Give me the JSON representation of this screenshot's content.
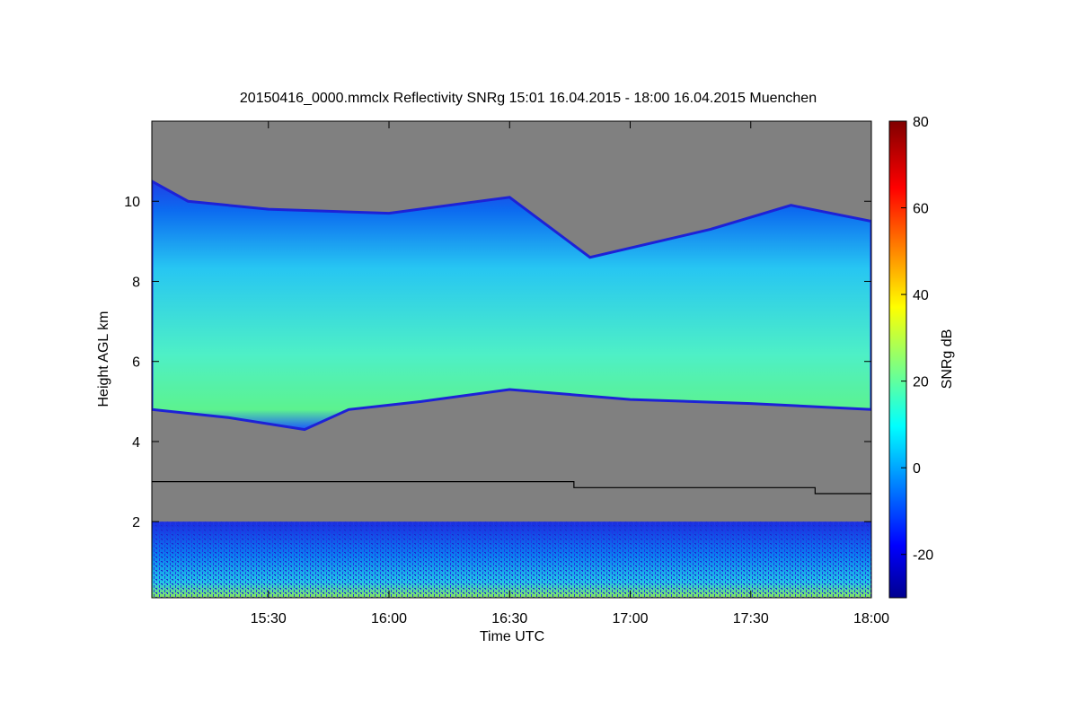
{
  "chart_data": {
    "type": "heatmap",
    "title": "20150416_0000.mmclx Reflectivity SNRg   15:01 16.04.2015 - 18:00 16.04.2015 Muenchen",
    "xlabel": "Time UTC",
    "ylabel": "Height AGL km",
    "xlim": [
      "15:01",
      "18:00"
    ],
    "ylim": [
      0.1,
      12
    ],
    "x_ticks": [
      "15:30",
      "16:00",
      "16:30",
      "17:00",
      "17:30",
      "18:00"
    ],
    "y_ticks": [
      2,
      4,
      6,
      8,
      10
    ],
    "colorbar": {
      "label": "SNRg dB",
      "range": [
        -30,
        80
      ],
      "ticks": [
        -20,
        0,
        20,
        40,
        60,
        80
      ],
      "colormap": "jet"
    },
    "background_color": "#808080",
    "grid": false,
    "legend": "none",
    "features": {
      "cloud_base_km": [
        {
          "time": "15:01",
          "h": 4.8
        },
        {
          "time": "15:20",
          "h": 4.6
        },
        {
          "time": "15:39",
          "h": 4.3
        },
        {
          "time": "15:50",
          "h": 4.8
        },
        {
          "time": "16:08",
          "h": 5.0
        },
        {
          "time": "16:30",
          "h": 5.3
        },
        {
          "time": "17:00",
          "h": 5.05
        },
        {
          "time": "17:30",
          "h": 4.95
        },
        {
          "time": "18:00",
          "h": 4.8
        }
      ],
      "cloud_top_km": [
        {
          "time": "15:01",
          "h": 10.5
        },
        {
          "time": "15:10",
          "h": 10.0
        },
        {
          "time": "15:30",
          "h": 9.8
        },
        {
          "time": "16:00",
          "h": 9.7
        },
        {
          "time": "16:30",
          "h": 10.1
        },
        {
          "time": "16:50",
          "h": 8.6
        },
        {
          "time": "17:20",
          "h": 9.3
        },
        {
          "time": "17:40",
          "h": 9.9
        },
        {
          "time": "18:00",
          "h": 9.5
        }
      ],
      "boundary_layer_top_km": 2.0,
      "melting_layer_km": [
        {
          "time": "15:01",
          "h": 3.0
        },
        {
          "time": "16:46",
          "h": 3.0
        },
        {
          "time": "16:46",
          "h": 2.85
        },
        {
          "time": "17:46",
          "h": 2.85
        },
        {
          "time": "17:46",
          "h": 2.7
        },
        {
          "time": "18:00",
          "h": 2.7
        }
      ]
    }
  }
}
